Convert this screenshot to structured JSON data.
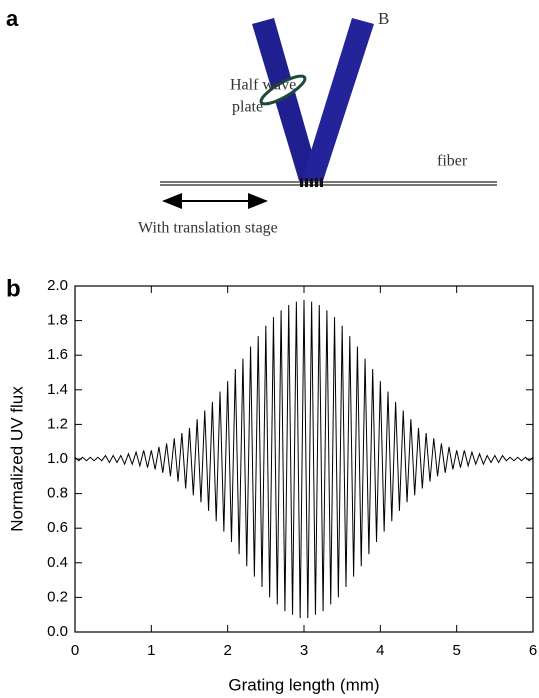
{
  "figure_labels": [
    "a",
    "b"
  ],
  "diagram": {
    "beam_label": "B",
    "plate_label": [
      "Half wave",
      "plate"
    ],
    "fiber_label": "fiber",
    "stage_label": "With translation stage"
  },
  "chart_data": {
    "type": "line",
    "xlabel": "Grating length (mm)",
    "ylabel": "Normalized UV flux",
    "color": "#000000",
    "x": [
      0,
      0.05,
      0.1,
      0.15,
      0.2,
      0.25,
      0.3,
      0.35,
      0.4,
      0.45,
      0.5,
      0.55,
      0.6,
      0.65,
      0.7,
      0.75,
      0.8,
      0.85,
      0.9,
      0.95,
      1,
      1.05,
      1.1,
      1.15,
      1.2,
      1.25,
      1.3,
      1.35,
      1.4,
      1.45,
      1.5,
      1.55,
      1.6,
      1.65,
      1.7,
      1.75,
      1.8,
      1.85,
      1.9,
      1.95,
      2,
      2.05,
      2.1,
      2.15,
      2.2,
      2.25,
      2.3,
      2.35,
      2.4,
      2.45,
      2.5,
      2.55,
      2.6,
      2.65,
      2.7,
      2.75,
      2.8,
      2.85,
      2.9,
      2.95,
      3,
      3.05,
      3.1,
      3.15,
      3.2,
      3.25,
      3.3,
      3.35,
      3.4,
      3.45,
      3.5,
      3.55,
      3.6,
      3.65,
      3.7,
      3.75,
      3.8,
      3.85,
      3.9,
      3.95,
      4,
      4.05,
      4.1,
      4.15,
      4.2,
      4.25,
      4.3,
      4.35,
      4.4,
      4.45,
      4.5,
      4.55,
      4.6,
      4.65,
      4.7,
      4.75,
      4.8,
      4.85,
      4.9,
      4.95,
      5,
      5.05,
      5.1,
      5.15,
      5.2,
      5.25,
      5.3,
      5.35,
      5.4,
      5.45,
      5.5,
      5.55,
      5.6,
      5.65,
      5.7,
      5.75,
      5.8,
      5.85,
      5.9,
      5.95,
      6
    ],
    "values": [
      1.01,
      0.99,
      1.01,
      0.99,
      1.01,
      0.99,
      1.01,
      0.99,
      1.02,
      0.98,
      1.02,
      0.98,
      1.02,
      0.97,
      1.03,
      0.97,
      1.04,
      0.96,
      1.05,
      0.95,
      1.05,
      0.94,
      1.07,
      0.92,
      1.09,
      0.9,
      1.12,
      0.87,
      1.15,
      0.83,
      1.18,
      0.79,
      1.23,
      0.75,
      1.28,
      0.7,
      1.33,
      0.64,
      1.39,
      0.58,
      1.45,
      0.52,
      1.52,
      0.45,
      1.58,
      0.38,
      1.65,
      0.32,
      1.71,
      0.26,
      1.77,
      0.2,
      1.82,
      0.16,
      1.86,
      0.12,
      1.89,
      0.1,
      1.91,
      0.08,
      1.92,
      0.08,
      1.91,
      0.1,
      1.89,
      0.12,
      1.86,
      0.16,
      1.82,
      0.2,
      1.77,
      0.26,
      1.71,
      0.32,
      1.65,
      0.38,
      1.58,
      0.45,
      1.52,
      0.52,
      1.45,
      0.58,
      1.39,
      0.64,
      1.33,
      0.7,
      1.28,
      0.75,
      1.23,
      0.79,
      1.18,
      0.83,
      1.15,
      0.87,
      1.12,
      0.9,
      1.09,
      0.92,
      1.07,
      0.94,
      1.05,
      0.95,
      1.05,
      0.96,
      1.04,
      0.97,
      1.03,
      0.97,
      1.02,
      0.98,
      1.02,
      0.98,
      1.02,
      0.99,
      1.01,
      0.99,
      1.01,
      0.99,
      1.01,
      0.99,
      1.01
    ],
    "xlim": [
      0,
      6
    ],
    "xticks": [
      0,
      1,
      2,
      3,
      4,
      5,
      6
    ],
    "ylim": [
      0,
      2
    ],
    "yticks": [
      {
        "value": 0,
        "label": "0.0"
      },
      0.2,
      0.4,
      0.6,
      0.8,
      {
        "value": 1,
        "label": "1.0"
      },
      1.2,
      1.4,
      1.6,
      1.8,
      {
        "value": 2,
        "label": "2.0"
      }
    ]
  }
}
